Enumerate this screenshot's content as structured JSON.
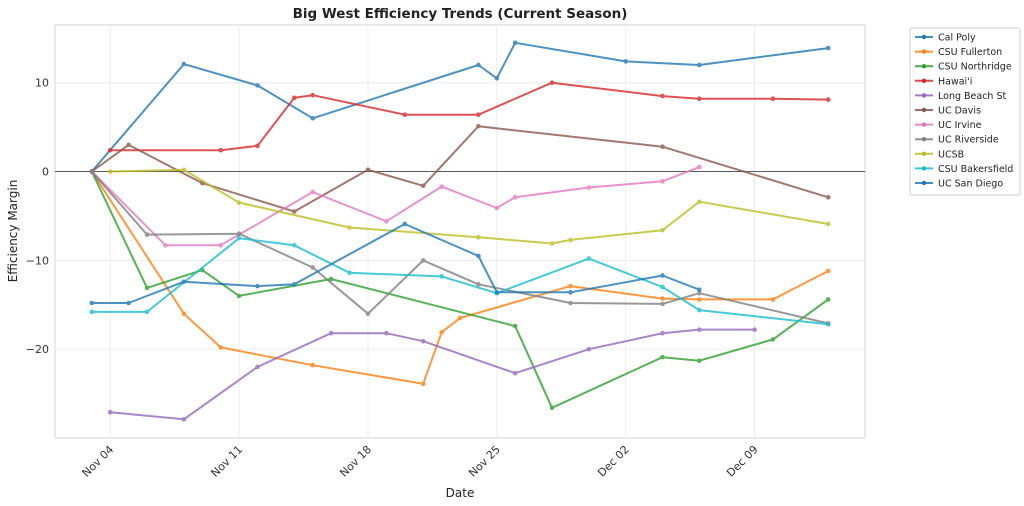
{
  "chart_data": {
    "type": "line",
    "title": "Big West Efficiency Trends (Current Season)",
    "xlabel": "Date",
    "ylabel": "Efficiency Margin",
    "xlim": [
      "Nov 01",
      "Dec 15"
    ],
    "ylim": [
      -30,
      16.5
    ],
    "x_ticks": [
      "Nov 04",
      "Nov 11",
      "Nov 18",
      "Nov 25",
      "Dec 02",
      "Dec 09"
    ],
    "y_ticks": [
      -20,
      -10,
      0,
      10
    ],
    "y_tick_labels": [
      "−20",
      "−10",
      "0",
      "10"
    ],
    "reference_line": 0,
    "grid": true,
    "legend_position": "outside-right",
    "series": [
      {
        "name": "Cal Poly",
        "color": "#1f77b4",
        "x": [
          "Nov 03",
          "Nov 08",
          "Nov 12",
          "Nov 15",
          "Nov 24",
          "Nov 25",
          "Nov 26",
          "Dec 02",
          "Dec 06",
          "Dec 13"
        ],
        "values": [
          0,
          12.1,
          9.7,
          6.0,
          12.0,
          10.5,
          14.5,
          12.4,
          12.0,
          13.9
        ]
      },
      {
        "name": "CSU Fullerton",
        "color": "#ff7f0e",
        "x": [
          "Nov 03",
          "Nov 08",
          "Nov 10",
          "Nov 15",
          "Nov 21",
          "Nov 22",
          "Nov 23",
          "Nov 29",
          "Dec 04",
          "Dec 06",
          "Dec 10",
          "Dec 13"
        ],
        "values": [
          0,
          -16.0,
          -19.8,
          -21.8,
          -23.9,
          -18.1,
          -16.5,
          -12.9,
          -14.3,
          -14.4,
          -14.4,
          -11.2
        ]
      },
      {
        "name": "CSU Northridge",
        "color": "#2ca02c",
        "x": [
          "Nov 03",
          "Nov 06",
          "Nov 09",
          "Nov 11",
          "Nov 16",
          "Nov 26",
          "Nov 28",
          "Dec 04",
          "Dec 06",
          "Dec 10",
          "Dec 13"
        ],
        "values": [
          0,
          -13.1,
          -11.1,
          -14.0,
          -12.1,
          -17.4,
          -26.6,
          -20.9,
          -21.3,
          -18.9,
          -14.4
        ]
      },
      {
        "name": "Hawai'i",
        "color": "#d62728",
        "x": [
          "Nov 04",
          "Nov 10",
          "Nov 12",
          "Nov 14",
          "Nov 15",
          "Nov 20",
          "Nov 24",
          "Nov 28",
          "Dec 04",
          "Dec 06",
          "Dec 10",
          "Dec 13"
        ],
        "values": [
          2.4,
          2.4,
          2.9,
          8.3,
          8.6,
          6.4,
          6.4,
          10.0,
          8.5,
          8.2,
          8.2,
          8.1
        ]
      },
      {
        "name": "Long Beach St",
        "color": "#9467bd",
        "x": [
          "Nov 04",
          "Nov 08",
          "Nov 12",
          "Nov 16",
          "Nov 19",
          "Nov 21",
          "Nov 26",
          "Nov 30",
          "Dec 04",
          "Dec 06",
          "Dec 09"
        ],
        "values": [
          -27.1,
          -27.9,
          -22.0,
          -18.2,
          -18.2,
          -19.1,
          -22.7,
          -20.0,
          -18.2,
          -17.8,
          -17.8
        ]
      },
      {
        "name": "UC Davis",
        "color": "#8c564b",
        "x": [
          "Nov 03",
          "Nov 05",
          "Nov 09",
          "Nov 14",
          "Nov 18",
          "Nov 21",
          "Nov 24",
          "Dec 04",
          "Dec 13"
        ],
        "values": [
          0,
          3.0,
          -1.3,
          -4.5,
          0.2,
          -1.6,
          5.1,
          2.8,
          -2.9
        ]
      },
      {
        "name": "UC Irvine",
        "color": "#e377c2",
        "x": [
          "Nov 03",
          "Nov 07",
          "Nov 10",
          "Nov 15",
          "Nov 19",
          "Nov 22",
          "Nov 25",
          "Nov 26",
          "Nov 30",
          "Dec 04",
          "Dec 06"
        ],
        "values": [
          0,
          -8.3,
          -8.3,
          -2.3,
          -5.6,
          -1.7,
          -4.1,
          -2.9,
          -1.8,
          -1.1,
          0.5
        ]
      },
      {
        "name": "UC Riverside",
        "color": "#7f7f7f",
        "x": [
          "Nov 03",
          "Nov 06",
          "Nov 11",
          "Nov 15",
          "Nov 18",
          "Nov 21",
          "Nov 24",
          "Nov 29",
          "Dec 04",
          "Dec 06",
          "Dec 13"
        ],
        "values": [
          0,
          -7.1,
          -7.0,
          -10.8,
          -16.0,
          -10.0,
          -12.7,
          -14.8,
          -14.9,
          -13.7,
          -17.1
        ]
      },
      {
        "name": "UCSB",
        "color": "#bcbd22",
        "x": [
          "Nov 04",
          "Nov 08",
          "Nov 11",
          "Nov 17",
          "Nov 24",
          "Nov 28",
          "Nov 29",
          "Dec 04",
          "Dec 06",
          "Dec 13"
        ],
        "values": [
          0,
          0.2,
          -3.5,
          -6.3,
          -7.4,
          -8.1,
          -7.7,
          -6.6,
          -3.4,
          -5.9
        ]
      },
      {
        "name": "CSU Bakersfield",
        "color": "#17becf",
        "x": [
          "Nov 03",
          "Nov 06",
          "Nov 11",
          "Nov 14",
          "Nov 17",
          "Nov 22",
          "Nov 25",
          "Nov 30",
          "Dec 04",
          "Dec 06",
          "Dec 13"
        ],
        "values": [
          -15.8,
          -15.8,
          -7.5,
          -8.3,
          -11.4,
          -11.8,
          -13.7,
          -9.8,
          -13.0,
          -15.6,
          -17.2
        ]
      },
      {
        "name": "UC San Diego",
        "color": "#1f77b4",
        "x": [
          "Nov 03",
          "Nov 05",
          "Nov 08",
          "Nov 12",
          "Nov 14",
          "Nov 20",
          "Nov 24",
          "Nov 25",
          "Nov 29",
          "Dec 04",
          "Dec 06"
        ],
        "values": [
          -14.8,
          -14.8,
          -12.4,
          -12.9,
          -12.7,
          -5.9,
          -9.5,
          -13.6,
          -13.6,
          -11.7,
          -13.3
        ]
      }
    ]
  }
}
